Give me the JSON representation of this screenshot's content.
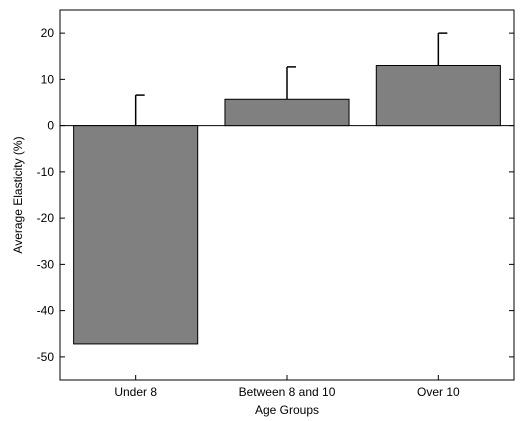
{
  "chart_data": {
    "type": "bar",
    "title": "",
    "xlabel": "Age Groups",
    "ylabel": "Average Elasticity (%)",
    "categories": [
      "Under 8",
      "Between 8 and 10",
      "Over 10"
    ],
    "values": [
      -47.2,
      5.7,
      13.0
    ],
    "error_upper": [
      6.6,
      12.7,
      20.0
    ],
    "ylim": [
      -55,
      25
    ],
    "yticks": [
      -50,
      -40,
      -30,
      -20,
      -10,
      0,
      10,
      20
    ],
    "legend": "none",
    "grid": false,
    "colors": {
      "bar_fill": "#808080",
      "bar_stroke": "#000000",
      "axis": "#000000"
    }
  }
}
